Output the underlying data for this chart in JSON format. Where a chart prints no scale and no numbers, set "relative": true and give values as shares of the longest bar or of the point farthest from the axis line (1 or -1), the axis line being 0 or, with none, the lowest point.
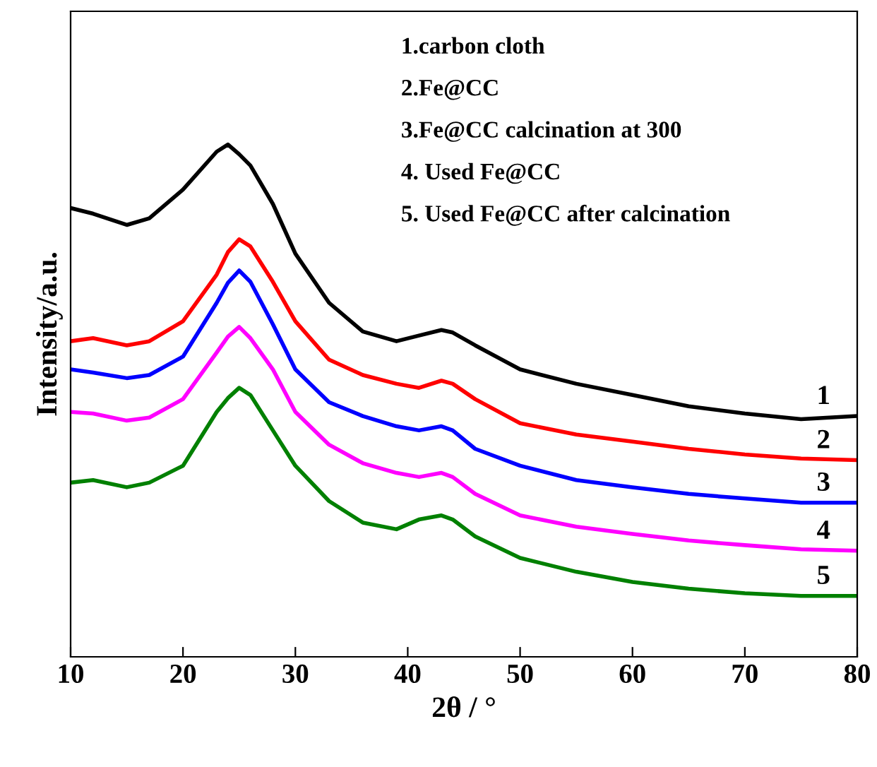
{
  "chart_data": {
    "type": "line",
    "relative": true,
    "xlabel": "2θ / °",
    "ylabel": "Intensity/a.u.",
    "x": [
      10,
      12,
      15,
      17,
      20,
      23,
      24,
      25,
      26,
      28,
      30,
      33,
      36,
      39,
      41,
      43,
      44,
      46,
      50,
      55,
      60,
      65,
      70,
      75,
      80
    ],
    "series": [
      {
        "name": "1",
        "color": "#000000",
        "values": [
          0.876,
          0.865,
          0.843,
          0.856,
          0.912,
          0.986,
          1.0,
          0.981,
          0.959,
          0.884,
          0.787,
          0.691,
          0.635,
          0.616,
          0.627,
          0.638,
          0.633,
          0.608,
          0.561,
          0.533,
          0.511,
          0.489,
          0.475,
          0.464,
          0.47
        ]
      },
      {
        "name": "2",
        "color": "#ff0000",
        "values": [
          0.616,
          0.622,
          0.608,
          0.616,
          0.655,
          0.746,
          0.79,
          0.815,
          0.801,
          0.732,
          0.655,
          0.58,
          0.55,
          0.533,
          0.525,
          0.539,
          0.533,
          0.503,
          0.456,
          0.434,
          0.42,
          0.406,
          0.395,
          0.387,
          0.384
        ]
      },
      {
        "name": "3",
        "color": "#0000ff",
        "values": [
          0.561,
          0.555,
          0.544,
          0.55,
          0.586,
          0.691,
          0.73,
          0.754,
          0.732,
          0.649,
          0.561,
          0.497,
          0.47,
          0.45,
          0.442,
          0.45,
          0.442,
          0.406,
          0.373,
          0.345,
          0.331,
          0.318,
          0.309,
          0.301,
          0.301
        ]
      },
      {
        "name": "4",
        "color": "#ff00ff",
        "values": [
          0.478,
          0.475,
          0.461,
          0.467,
          0.503,
          0.594,
          0.625,
          0.644,
          0.622,
          0.561,
          0.478,
          0.414,
          0.378,
          0.359,
          0.351,
          0.359,
          0.351,
          0.318,
          0.276,
          0.254,
          0.24,
          0.227,
          0.218,
          0.21,
          0.207
        ]
      },
      {
        "name": "5",
        "color": "#008000",
        "values": [
          0.34,
          0.345,
          0.331,
          0.34,
          0.373,
          0.478,
          0.505,
          0.525,
          0.511,
          0.442,
          0.373,
          0.304,
          0.262,
          0.249,
          0.268,
          0.276,
          0.268,
          0.235,
          0.193,
          0.166,
          0.146,
          0.133,
          0.124,
          0.119,
          0.119
        ]
      }
    ],
    "xlim": [
      10,
      80
    ],
    "xticks": [
      10,
      20,
      30,
      40,
      50,
      60,
      70,
      80
    ],
    "tick_labels": "x",
    "grid": false,
    "legend": false,
    "line_style": "solid",
    "marker": "none",
    "annotations": [
      "1.carbon cloth",
      "2.Fe@CC",
      "3.Fe@CC calcination at 300",
      "4. Used Fe@CC",
      "5. Used Fe@CC after calcination"
    ]
  }
}
